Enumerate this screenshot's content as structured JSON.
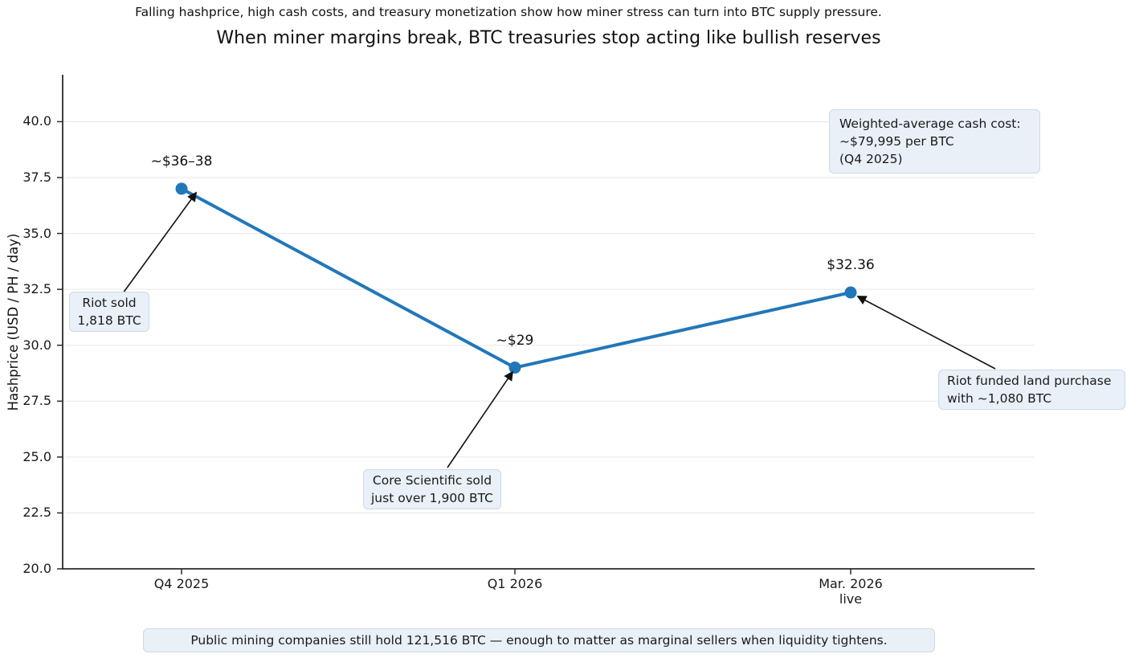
{
  "header": {
    "suptitle": "Falling hashprice, high cash costs, and treasury monetization show how miner stress can turn into BTC supply pressure.",
    "title": "When miner margins break, BTC treasuries stop acting like bullish reserves"
  },
  "chart_data": {
    "type": "line",
    "title": "When miner margins break, BTC treasuries stop acting like bullish reserves",
    "subtitle": "Falling hashprice, high cash costs, and treasury monetization show how miner stress can turn into BTC supply pressure.",
    "xlabel": "",
    "ylabel": "Hashprice (USD / PH / day)",
    "categories": [
      "Q4 2025",
      "Q1 2026",
      "Mar. 2026\nlive"
    ],
    "values": [
      37.0,
      29.0,
      32.36
    ],
    "point_labels": [
      "~$36–38",
      "~$29",
      "$32.36"
    ],
    "ylim": [
      20.0,
      42.1
    ],
    "yticks": [
      "20.0",
      "22.5",
      "25.0",
      "27.5",
      "30.0",
      "32.5",
      "35.0",
      "37.5",
      "40.0"
    ],
    "grid": "horizontal",
    "legend": "none",
    "line_color": "#2277b9",
    "marker": "circle",
    "annotations": [
      {
        "id": "riot-sold",
        "text": "Riot sold\n1,818 BTC",
        "points_to": "Q4 2025 data point"
      },
      {
        "id": "core-scientific",
        "text": "Core Scientific sold\njust over 1,900 BTC",
        "points_to": "Q1 2026 data point"
      },
      {
        "id": "riot-land",
        "text": "Riot funded land purchase\nwith ~1,080 BTC",
        "points_to": "Mar. 2026 data point"
      },
      {
        "id": "cash-cost",
        "text": "Weighted-average cash cost:\n~$79,995 per BTC\n(Q4 2025)",
        "points_to": ""
      }
    ]
  },
  "footer": {
    "note": "Public mining companies still hold 121,516 BTC — enough to matter as marginal sellers when liquidity tightens."
  }
}
